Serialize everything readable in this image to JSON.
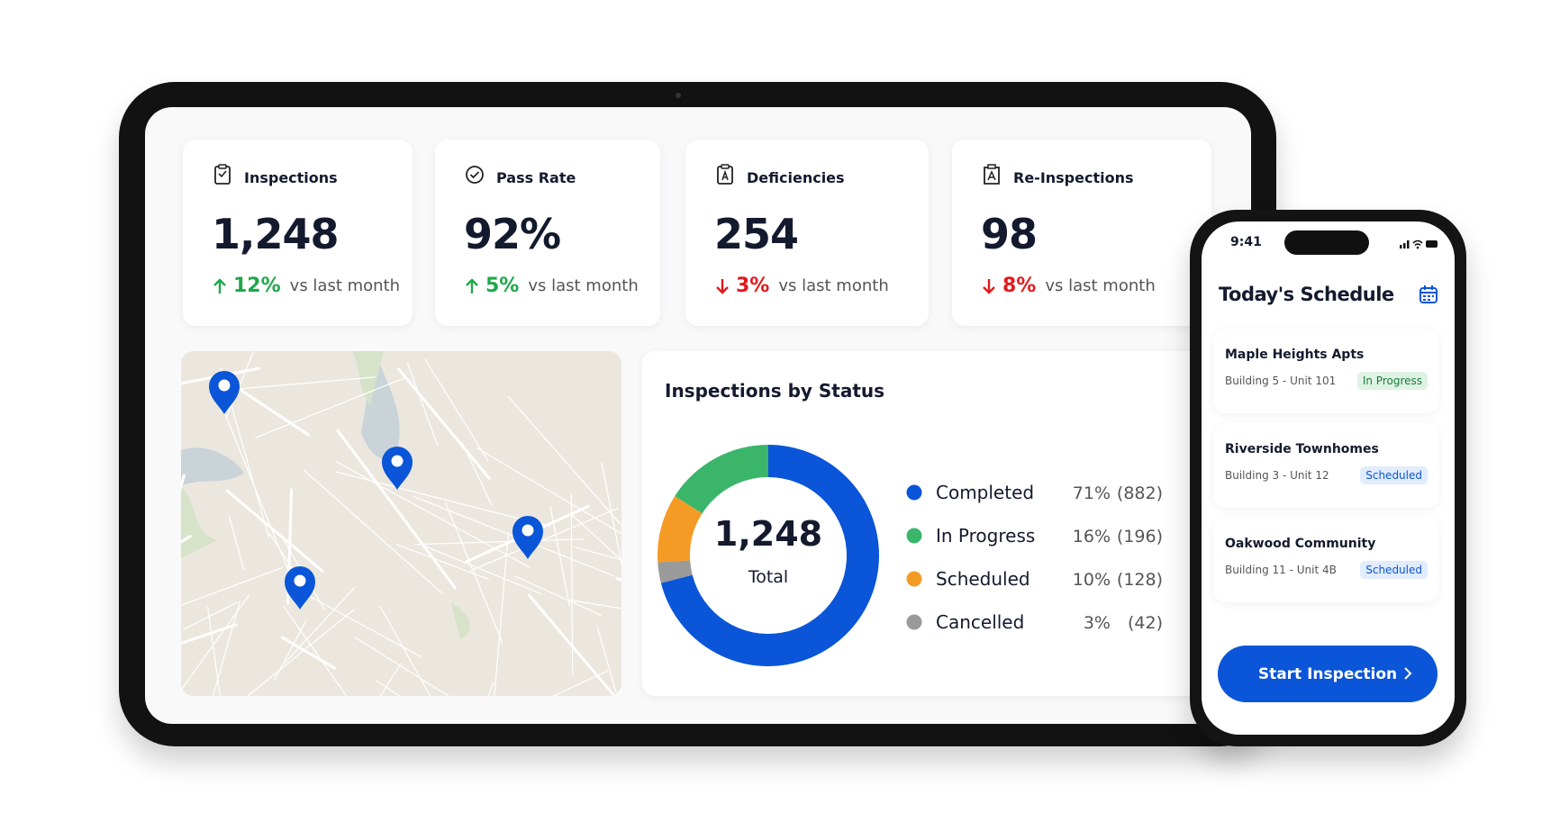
{
  "kpis": [
    {
      "label": "Inspections",
      "value": "1,248",
      "change": "12%",
      "trend": "up",
      "note": "vs last month"
    },
    {
      "label": "Pass Rate",
      "value": "92%",
      "change": "5%",
      "trend": "up",
      "note": "vs last month"
    },
    {
      "label": "Deficiencies",
      "value": "254",
      "change": "3%",
      "trend": "down",
      "note": "vs last month"
    },
    {
      "label": "Re-Inspections",
      "value": "98",
      "change": "8%",
      "trend": "down",
      "note": "vs last month"
    }
  ],
  "chart_data": {
    "type": "donut",
    "title": "Inspections by Status",
    "center_value": "1,248",
    "center_label": "Total",
    "categories": [
      "Completed",
      "In Progress",
      "Scheduled",
      "Cancelled"
    ],
    "values": [
      71,
      16,
      10,
      3
    ],
    "value_labels": [
      "71%",
      "16%",
      "10%",
      "3%"
    ],
    "count_labels": [
      "(882)",
      "(196)",
      "(128)",
      "(42)"
    ],
    "colors": [
      "#0a55d8",
      "#3bb56a",
      "#f49b26",
      "#9a9a9a"
    ]
  },
  "phone": {
    "time": "9:41",
    "title": "Today's Schedule",
    "items": [
      {
        "name": "Maple Heights Apts",
        "unit": "Building 5 - Unit 101",
        "status": "In Progress",
        "badge": "green"
      },
      {
        "name": "Riverside Townhomes",
        "unit": "Building 3 - Unit 12",
        "status": "Scheduled",
        "badge": "blue"
      },
      {
        "name": "Oakwood Community",
        "unit": "Building 11 - Unit 4B",
        "status": "Scheduled",
        "badge": "blue"
      }
    ],
    "button": "Start Inspection"
  }
}
